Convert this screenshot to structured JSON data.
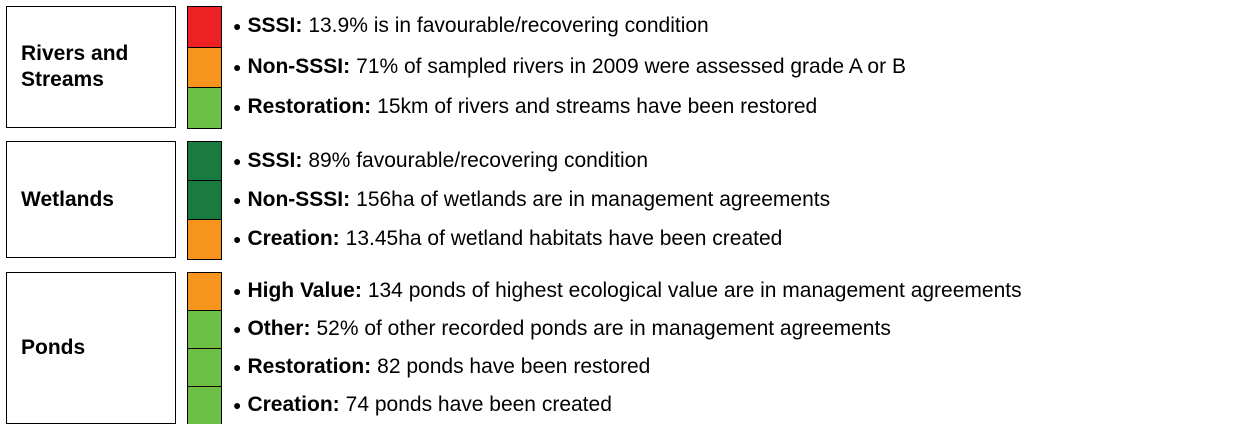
{
  "sections": [
    {
      "label": "Rivers and Streams",
      "items": [
        {
          "term": "SSSI:",
          "text": "13.9% is in favourable/recovering condition",
          "status_color": "#ed2024"
        },
        {
          "term": "Non-SSSI:",
          "text": "71% of sampled rivers in 2009 were assessed grade A or B",
          "status_color": "#f7941d"
        },
        {
          "term": "Restoration:",
          "text": "15km of rivers and streams have been restored",
          "status_color": "#6cbf45"
        }
      ]
    },
    {
      "label": "Wetlands",
      "items": [
        {
          "term": "SSSI:",
          "text": "89% favourable/recovering condition",
          "status_color": "#197b3f"
        },
        {
          "term": "Non-SSSI:",
          "text": "156ha of wetlands are in management agreements",
          "status_color": "#197b3f"
        },
        {
          "term": "Creation:",
          "text": "13.45ha of wetland habitats have been created",
          "status_color": "#f7941d"
        }
      ]
    },
    {
      "label": "Ponds",
      "items": [
        {
          "term": "High Value:",
          "text": "134 ponds of highest ecological value are in management agreements",
          "status_color": "#f7941d"
        },
        {
          "term": "Other:",
          "text": "52% of other recorded ponds are in management agreements",
          "status_color": "#6cbf45"
        },
        {
          "term": "Restoration:",
          "text": "82 ponds have been restored",
          "status_color": "#6cbf45"
        },
        {
          "term": "Creation:",
          "text": "74 ponds have been created",
          "status_color": "#6cbf45"
        }
      ]
    }
  ]
}
